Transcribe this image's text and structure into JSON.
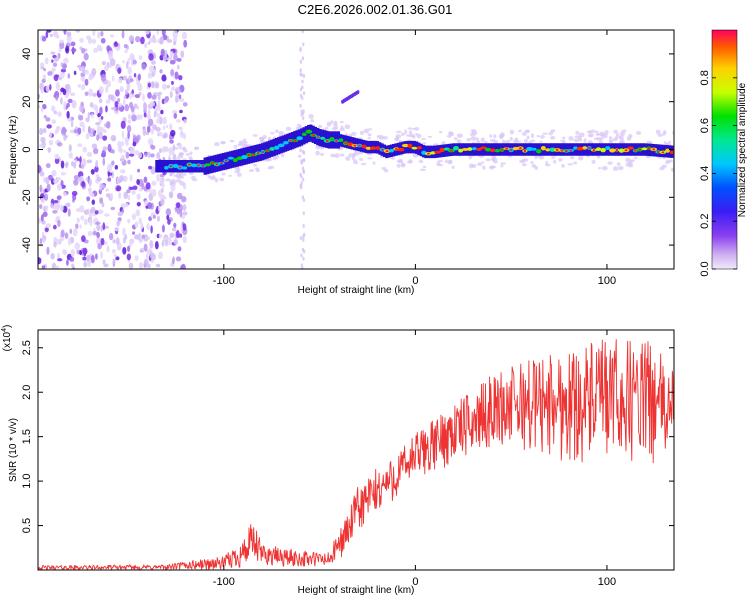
{
  "title": "C2E6.2026.002.01.36.G01",
  "chart_data": [
    {
      "type": "heatmap",
      "name": "spectrogram",
      "xlabel": "Height of straight line (km)",
      "ylabel": "Frequency (Hz)",
      "xlim": [
        -197,
        135
      ],
      "ylim": [
        -50,
        50
      ],
      "xticks": [
        -100,
        0,
        100
      ],
      "xtick_labels": [
        "-100",
        "0",
        "100"
      ],
      "yticks": [
        -40,
        -20,
        0,
        20,
        40
      ],
      "ytick_labels": [
        "-40",
        "-20",
        "0",
        "20",
        "40"
      ],
      "ridge": {
        "x": [
          -135,
          -120,
          -110,
          -100,
          -90,
          -80,
          -70,
          -60,
          -55,
          -50,
          -45,
          -40,
          -35,
          -30,
          -25,
          -20,
          -15,
          -10,
          -5,
          0,
          5,
          10,
          20,
          40,
          60,
          80,
          100,
          120,
          135
        ],
        "y": [
          -7,
          -7,
          -7,
          -5,
          -3,
          -1,
          2,
          5,
          7,
          5,
          4,
          4,
          3,
          2,
          1,
          1,
          -1,
          0,
          1,
          1,
          -1,
          -1,
          0,
          0,
          0,
          0,
          0,
          0,
          -1
        ]
      },
      "noise_region_x": [
        -197,
        -120
      ],
      "colorbar": {
        "label": "Normalized spectral amplitude",
        "range": [
          0,
          1
        ],
        "ticks": [
          0.0,
          0.2,
          0.4,
          0.6,
          0.8
        ],
        "tick_labels": [
          "0.0",
          "0.2",
          "0.4",
          "0.6",
          "0.8"
        ]
      }
    },
    {
      "type": "line",
      "name": "snr",
      "xlabel": "Height of straight line (km)",
      "ylabel": "SNR (10 * v/v)",
      "scale_label": "(x10",
      "scale_exponent": "4",
      "scale_suffix": ")",
      "xlim": [
        -197,
        135
      ],
      "ylim": [
        0,
        2.7
      ],
      "xticks": [
        -100,
        0,
        100
      ],
      "xtick_labels": [
        "-100",
        "0",
        "100"
      ],
      "yticks": [
        0.5,
        1.0,
        1.5,
        2.0,
        2.5
      ],
      "ytick_labels": [
        "0.5",
        "1.0",
        "1.5",
        "2.0",
        "2.5"
      ],
      "color": "#ee3333",
      "envelope": {
        "x": [
          -197,
          -130,
          -120,
          -100,
          -90,
          -85,
          -80,
          -70,
          -60,
          -45,
          -40,
          -35,
          -30,
          -25,
          -20,
          -10,
          0,
          10,
          20,
          30,
          40,
          60,
          80,
          100,
          120,
          135
        ],
        "low": [
          0.0,
          0.0,
          0.0,
          0.0,
          0.02,
          0.05,
          0.05,
          0.03,
          0.03,
          0.02,
          0.1,
          0.25,
          0.4,
          0.5,
          0.6,
          0.8,
          1.0,
          1.1,
          1.2,
          1.3,
          1.4,
          1.3,
          1.2,
          1.2,
          1.2,
          1.2
        ],
        "high": [
          0.05,
          0.06,
          0.1,
          0.15,
          0.35,
          0.55,
          0.3,
          0.25,
          0.22,
          0.2,
          0.45,
          0.65,
          0.95,
          1.05,
          1.15,
          1.3,
          1.55,
          1.7,
          1.9,
          2.0,
          2.2,
          2.4,
          2.5,
          2.6,
          2.6,
          2.3
        ]
      }
    }
  ]
}
